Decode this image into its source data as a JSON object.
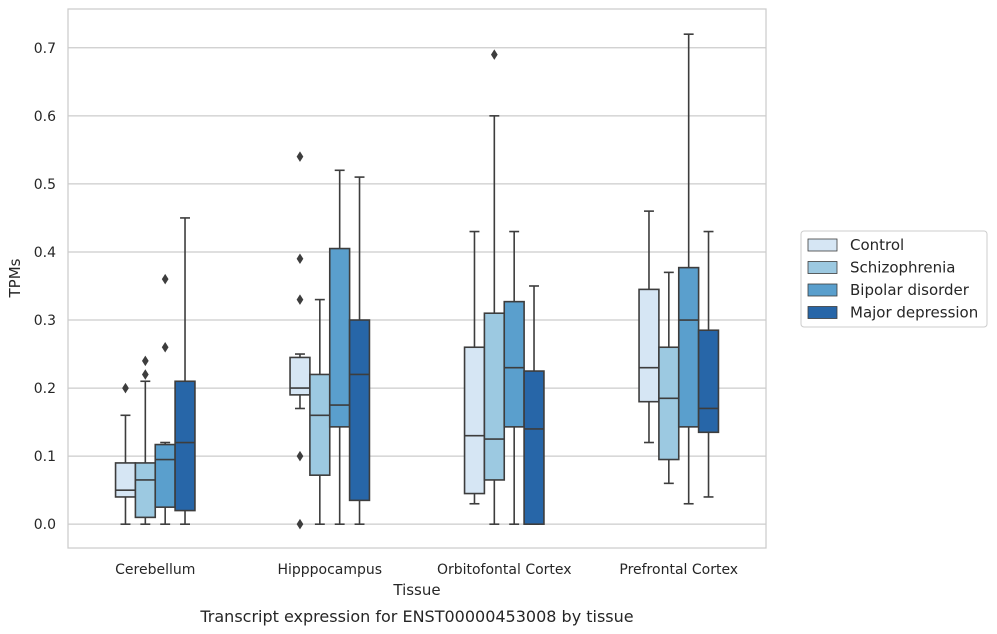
{
  "chart_data": {
    "type": "box",
    "xlabel": "Tissue",
    "ylabel": "TPMs",
    "caption": "Transcript expression for ENST00000453008 by tissue",
    "ylim": [
      -0.035,
      0.757
    ],
    "yticks": [
      0.0,
      0.1,
      0.2,
      0.3,
      0.4,
      0.5,
      0.6,
      0.7
    ],
    "ytick_labels": [
      "0.0",
      "0.1",
      "0.2",
      "0.3",
      "0.4",
      "0.5",
      "0.6",
      "0.7"
    ],
    "grid": "horizontal",
    "legend_position": "right",
    "categories": [
      "Cerebellum",
      "Hipppocampus",
      "Orbitofontal Cortex",
      "Prefrontal Cortex"
    ],
    "series": [
      {
        "name": "Control",
        "color": "#d6e6f4",
        "boxes": [
          {
            "whislo": 0.0,
            "q1": 0.04,
            "med": 0.05,
            "q3": 0.09,
            "whishi": 0.16,
            "fliers": [
              0.2
            ]
          },
          {
            "whislo": 0.17,
            "q1": 0.19,
            "med": 0.2,
            "q3": 0.245,
            "whishi": 0.25,
            "fliers": [
              0.54,
              0.39,
              0.33,
              0.1,
              0.0
            ]
          },
          {
            "whislo": 0.03,
            "q1": 0.045,
            "med": 0.13,
            "q3": 0.26,
            "whishi": 0.43,
            "fliers": []
          },
          {
            "whislo": 0.12,
            "q1": 0.18,
            "med": 0.23,
            "q3": 0.345,
            "whishi": 0.46,
            "fliers": []
          }
        ]
      },
      {
        "name": "Schizophrenia",
        "color": "#9cc9e1",
        "boxes": [
          {
            "whislo": 0.0,
            "q1": 0.01,
            "med": 0.065,
            "q3": 0.09,
            "whishi": 0.21,
            "fliers": [
              0.24,
              0.22
            ]
          },
          {
            "whislo": 0.0,
            "q1": 0.072,
            "med": 0.16,
            "q3": 0.22,
            "whishi": 0.33,
            "fliers": []
          },
          {
            "whislo": 0.0,
            "q1": 0.065,
            "med": 0.125,
            "q3": 0.31,
            "whishi": 0.6,
            "fliers": [
              0.69
            ]
          },
          {
            "whislo": 0.06,
            "q1": 0.095,
            "med": 0.185,
            "q3": 0.26,
            "whishi": 0.37,
            "fliers": []
          }
        ]
      },
      {
        "name": "Bipolar disorder",
        "color": "#5a9fcd",
        "boxes": [
          {
            "whislo": 0.0,
            "q1": 0.025,
            "med": 0.095,
            "q3": 0.117,
            "whishi": 0.12,
            "fliers": [
              0.36,
              0.26
            ]
          },
          {
            "whislo": 0.0,
            "q1": 0.143,
            "med": 0.175,
            "q3": 0.405,
            "whishi": 0.52,
            "fliers": []
          },
          {
            "whislo": 0.0,
            "q1": 0.143,
            "med": 0.23,
            "q3": 0.327,
            "whishi": 0.43,
            "fliers": []
          },
          {
            "whislo": 0.03,
            "q1": 0.143,
            "med": 0.3,
            "q3": 0.377,
            "whishi": 0.72,
            "fliers": []
          }
        ]
      },
      {
        "name": "Major depression",
        "color": "#2766a8",
        "boxes": [
          {
            "whislo": 0.0,
            "q1": 0.02,
            "med": 0.12,
            "q3": 0.21,
            "whishi": 0.45,
            "fliers": []
          },
          {
            "whislo": 0.0,
            "q1": 0.035,
            "med": 0.22,
            "q3": 0.3,
            "whishi": 0.51,
            "fliers": []
          },
          {
            "whislo": 0.0,
            "q1": 0.0,
            "med": 0.14,
            "q3": 0.225,
            "whishi": 0.35,
            "fliers": []
          },
          {
            "whislo": 0.04,
            "q1": 0.135,
            "med": 0.17,
            "q3": 0.285,
            "whishi": 0.43,
            "fliers": []
          }
        ]
      }
    ]
  }
}
